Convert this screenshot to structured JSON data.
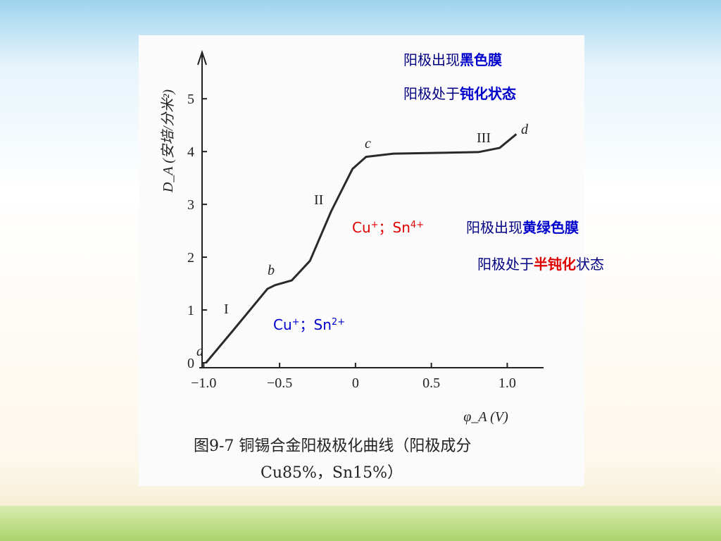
{
  "chart_data": {
    "type": "line",
    "x_label": "φ_A (V)",
    "y_label": "D_A (安培/分米²)",
    "caption": [
      "图9-7  铜锡合金阳极极化曲线（阳极成分",
      "Cu85%，Sn15%）"
    ],
    "x": [
      -0.985,
      -0.81,
      -0.58,
      -0.53,
      -0.42,
      -0.3,
      -0.16,
      -0.02,
      0.07,
      0.25,
      0.81,
      0.95,
      1.06
    ],
    "values": [
      0,
      0.6,
      1.4,
      1.47,
      1.56,
      1.93,
      2.87,
      3.67,
      3.9,
      3.96,
      3.99,
      4.07,
      4.33
    ],
    "color": "#2a2a2a",
    "xlim": [
      -1.02,
      1.23
    ],
    "ylim": [
      0,
      5.87
    ],
    "xticks": [
      {
        "value": -1,
        "label": "−1.0"
      },
      {
        "value": -0.5,
        "label": "−0.5"
      },
      0,
      0.5,
      {
        "value": 1,
        "label": "1.0"
      }
    ],
    "yticks": [
      0,
      1,
      2,
      3,
      4,
      5
    ],
    "curve_labels": [
      "a",
      "b",
      "c",
      "d"
    ],
    "region_labels": [
      "I",
      "II",
      "III"
    ],
    "annotations": [
      {
        "parts": [
          {
            "text": "阳极出现",
            "color": "#000080"
          },
          {
            "text": "黑色膜",
            "color": "#0000cc",
            "bold": true
          }
        ]
      },
      {
        "parts": [
          {
            "text": "阳极处于",
            "color": "#000080"
          },
          {
            "text": "钝化状态",
            "color": "#0000cc",
            "bold": true
          }
        ]
      },
      {
        "parts": [
          {
            "text": "Cu",
            "color": "#e00000"
          },
          {
            "text": "+",
            "color": "#e00000",
            "sup": true
          },
          {
            "text": "；Sn",
            "color": "#e00000"
          },
          {
            "text": "4+",
            "color": "#e00000",
            "sup": true
          }
        ]
      },
      {
        "parts": [
          {
            "text": "阳极出现",
            "color": "#000080"
          },
          {
            "text": "黄绿色膜",
            "color": "#0000cc",
            "bold": true
          }
        ]
      },
      {
        "parts": [
          {
            "text": "阳极处于",
            "color": "#000080"
          },
          {
            "text": "半钝化",
            "color": "#e00000",
            "bold": true
          },
          {
            "text": "状态",
            "color": "#000080"
          }
        ]
      },
      {
        "parts": [
          {
            "text": "Cu",
            "color": "#0000cc"
          },
          {
            "text": "+",
            "color": "#0000cc",
            "sup": true
          },
          {
            "text": "；Sn",
            "color": "#0000cc"
          },
          {
            "text": "2+",
            "color": "#0000cc",
            "sup": true
          }
        ]
      }
    ]
  }
}
